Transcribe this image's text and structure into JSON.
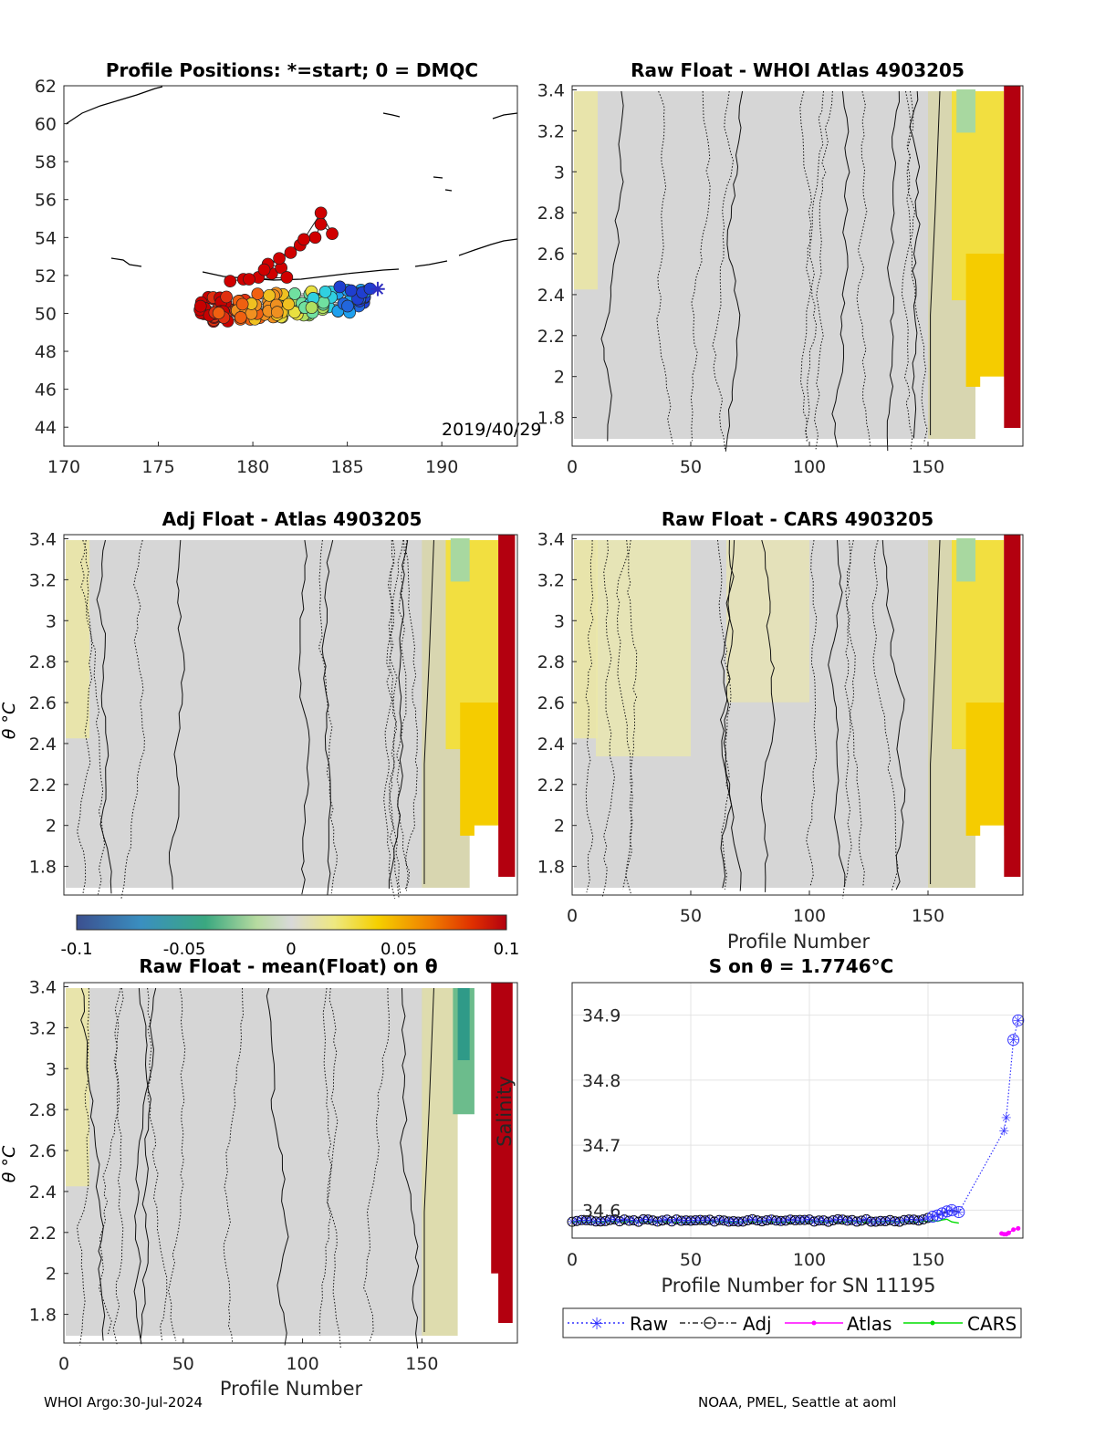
{
  "panels": {
    "map": {
      "title": "Profile Positions: *=start; 0 = DMQC",
      "date_label": "2019/40/29"
    },
    "p2": {
      "title": "Raw Float - WHOI Atlas  4903205"
    },
    "p3": {
      "title": "Adj Float - Atlas  4903205",
      "ylabel": "θ °C"
    },
    "p4": {
      "title": "Raw Float - CARS  4903205",
      "xlabel": "Profile Number"
    },
    "p5": {
      "title": "Raw Float - mean(Float) on θ",
      "ylabel": "θ °C",
      "xlabel": "Profile Number",
      "overlay_label": "Salinity"
    },
    "p6": {
      "title": "S on θ = 1.7746°C",
      "xlabel": "Profile Number for SN 11195"
    }
  },
  "colorbar": {
    "ticks": [
      "-0.1",
      "-0.05",
      "0",
      "0.05",
      "0.1"
    ]
  },
  "footer": {
    "left": "WHOI Argo:30-Jul-2024",
    "right": "NOAA, PMEL, Seattle at aoml"
  },
  "chart_data": [
    {
      "type": "scatter",
      "id": "map",
      "title": "Profile Positions: *=start; 0 = DMQC",
      "xlim": [
        170,
        194
      ],
      "ylim": [
        43,
        62
      ],
      "xticks": [
        170,
        175,
        180,
        185,
        190
      ],
      "yticks": [
        44,
        46,
        48,
        50,
        52,
        54,
        56,
        58,
        60,
        62
      ],
      "start": {
        "lon": 186.7,
        "lat": 51.3
      }
    },
    {
      "type": "heatmap",
      "id": "p2",
      "title": "Raw Float - WHOI Atlas  4903205",
      "xlim": [
        0,
        190
      ],
      "ylim": [
        1.66,
        3.42
      ],
      "xticks": [
        0,
        50,
        100,
        150
      ],
      "yticks": [
        1.8,
        2,
        2.2,
        2.4,
        2.6,
        2.8,
        3,
        3.2,
        3.4
      ]
    },
    {
      "type": "heatmap",
      "id": "p3",
      "title": "Adj Float - Atlas  4903205",
      "xlim": [
        0,
        190
      ],
      "ylim": [
        1.66,
        3.42
      ],
      "xticks": [],
      "yticks": [
        1.8,
        2,
        2.2,
        2.4,
        2.6,
        2.8,
        3,
        3.2,
        3.4
      ]
    },
    {
      "type": "heatmap",
      "id": "p4",
      "title": "Raw Float - CARS  4903205",
      "xlim": [
        0,
        190
      ],
      "ylim": [
        1.66,
        3.42
      ],
      "xticks": [
        0,
        50,
        100,
        150
      ],
      "yticks": [
        1.8,
        2,
        2.2,
        2.4,
        2.6,
        2.8,
        3,
        3.2,
        3.4
      ]
    },
    {
      "type": "heatmap",
      "id": "p5",
      "title": "Raw Float - mean(Float) on θ",
      "xlim": [
        0,
        190
      ],
      "ylim": [
        1.66,
        3.42
      ],
      "xticks": [
        0,
        50,
        100,
        150
      ],
      "yticks": [
        1.8,
        2,
        2.2,
        2.4,
        2.6,
        2.8,
        3,
        3.2,
        3.4
      ]
    },
    {
      "type": "line",
      "id": "p6",
      "title": "S on θ = 1.7746°C",
      "xlim": [
        0,
        190
      ],
      "ylim": [
        34.557,
        34.95
      ],
      "xticks": [
        0,
        50,
        100,
        150
      ],
      "yticks": [
        34.6,
        34.7,
        34.8,
        34.9
      ],
      "grid": true,
      "legend_placement": "bottom-outside",
      "series": [
        {
          "name": "Raw",
          "color": "#3030ff"
        },
        {
          "name": "Adj",
          "color": "#000000"
        },
        {
          "name": "Atlas",
          "color": "#ff00ff"
        },
        {
          "name": "CARS",
          "color": "#00dd00"
        }
      ],
      "tail": {
        "x": [
          150,
          152,
          154,
          156,
          158,
          160,
          163,
          182,
          183,
          186,
          188
        ],
        "raw": [
          34.588,
          34.59,
          34.592,
          34.595,
          34.598,
          34.6,
          34.597,
          34.722,
          34.742,
          34.862,
          34.892
        ],
        "atlas": {
          "x": [
            181,
            182,
            183,
            184,
            186,
            188
          ],
          "y": [
            34.564,
            34.563,
            34.563,
            34.565,
            34.57,
            34.572
          ]
        },
        "cars": {
          "x": [
            150,
            152,
            154,
            156,
            158,
            160,
            163
          ],
          "y": [
            34.583,
            34.584,
            34.583,
            34.585,
            34.586,
            34.582,
            34.58
          ]
        }
      }
    }
  ]
}
